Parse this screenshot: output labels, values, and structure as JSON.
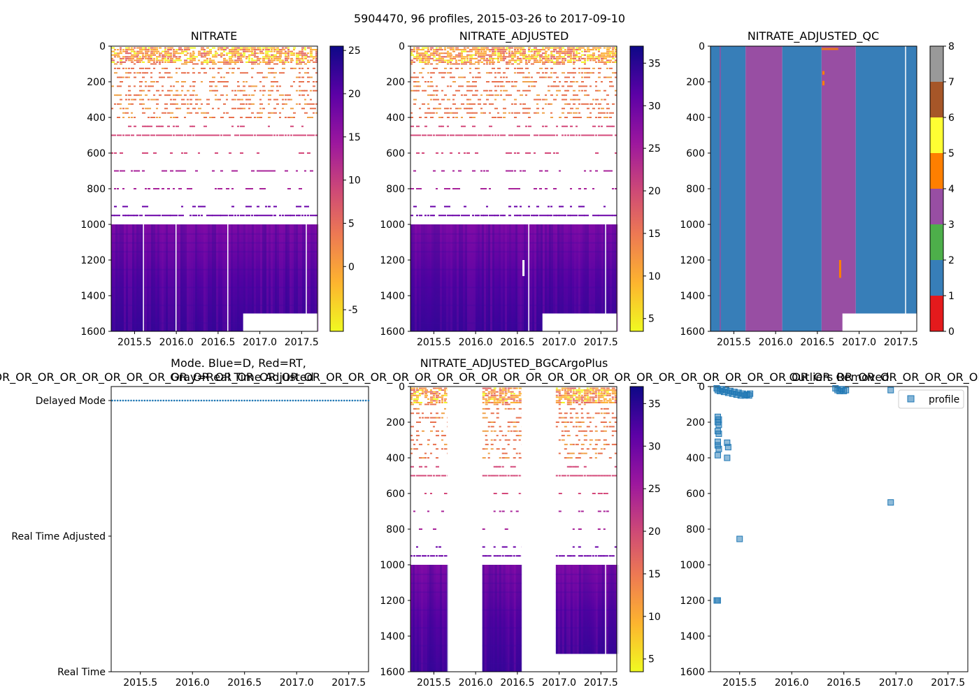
{
  "figure": {
    "suptitle": "5904470, 96 profiles, 2015-03-26 to 2017-09-10"
  },
  "chart_data": [
    {
      "id": "nitrate",
      "type": "heatmap",
      "title": "NITRATE",
      "xlabel": "",
      "ylabel": "",
      "xlim": [
        2015.22,
        2017.69
      ],
      "ylim": [
        1600,
        0
      ],
      "xticks": [
        "2015.5",
        "2016.0",
        "2016.5",
        "2017.0",
        "2017.5"
      ],
      "xtick_values": [
        2015.5,
        2016.0,
        2016.5,
        2017.0,
        2017.5
      ],
      "yticks": [
        "0",
        "200",
        "400",
        "600",
        "800",
        "1000",
        "1200",
        "1400",
        "1600"
      ],
      "colorbar": {
        "cmap": "plasma_r",
        "range": [
          -7.5,
          25.5
        ],
        "ticks": [
          "-5",
          "0",
          "5",
          "10",
          "15",
          "20",
          "25"
        ],
        "tick_values": [
          -5,
          0,
          5,
          10,
          15,
          20,
          25
        ]
      },
      "description_values": {
        "surface_range": [
          -5,
          3
        ],
        "deep_range_1000_1600": [
          18,
          25
        ]
      }
    },
    {
      "id": "nitrate_adjusted",
      "type": "heatmap",
      "title": "NITRATE_ADJUSTED",
      "xlim": [
        2015.22,
        2017.69
      ],
      "ylim": [
        1600,
        0
      ],
      "xticks": [
        "2015.5",
        "2016.0",
        "2016.5",
        "2017.0",
        "2017.5"
      ],
      "xtick_values": [
        2015.5,
        2016.0,
        2016.5,
        2017.0,
        2017.5
      ],
      "yticks": [
        "0",
        "200",
        "400",
        "600",
        "800",
        "1000",
        "1200",
        "1400",
        "1600"
      ],
      "colorbar": {
        "cmap": "plasma_r",
        "range": [
          3.5,
          37
        ],
        "ticks": [
          "5",
          "10",
          "15",
          "20",
          "25",
          "30",
          "35"
        ],
        "tick_values": [
          5,
          10,
          15,
          20,
          25,
          30,
          35
        ]
      }
    },
    {
      "id": "nitrate_adjusted_qc",
      "type": "heatmap",
      "title": "NITRATE_ADJUSTED_QC",
      "xlim": [
        2015.22,
        2017.69
      ],
      "ylim": [
        1600,
        0
      ],
      "xticks": [
        "2015.5",
        "2016.0",
        "2016.5",
        "2017.0",
        "2017.5"
      ],
      "xtick_values": [
        2015.5,
        2016.0,
        2016.5,
        2017.0,
        2017.5
      ],
      "yticks": [
        "0",
        "200",
        "400",
        "600",
        "800",
        "1000",
        "1200",
        "1400",
        "1600"
      ],
      "colorbar": {
        "type": "discrete",
        "range": [
          0,
          8
        ],
        "ticks": [
          "0",
          "1",
          "2",
          "3",
          "4",
          "5",
          "6",
          "7",
          "8"
        ],
        "tick_values": [
          0,
          1,
          2,
          3,
          4,
          5,
          6,
          7,
          8
        ],
        "colors": [
          "#e41a1c",
          "#377eb8",
          "#4daf4a",
          "#984ea3",
          "#ff7f00",
          "#ffff33",
          "#a65628",
          "#f781bf",
          "#999999"
        ]
      },
      "bands": [
        {
          "x0": 2015.22,
          "x1": 2015.64,
          "flag": 1
        },
        {
          "x0": 2015.64,
          "x1": 2016.08,
          "flag": 3
        },
        {
          "x0": 2016.08,
          "x1": 2016.55,
          "flag": 1
        },
        {
          "x0": 2016.55,
          "x1": 2016.96,
          "flag": 3
        },
        {
          "x0": 2016.96,
          "x1": 2017.69,
          "flag": 1
        }
      ],
      "blank_region": {
        "x0": 2016.8,
        "x1": 2017.69,
        "y0": 1500,
        "y1": 1600
      }
    },
    {
      "id": "mode",
      "type": "scatter",
      "title": "Mode. Blue=D, Red=RT,\nGray=Real Time Adjusted",
      "title_lines": [
        "Mode. Blue=D, Red=RT,",
        "Gray=Real Time Adjusted"
      ],
      "xlim": [
        2015.22,
        2017.69
      ],
      "xticks": [
        "2015.5",
        "2016.0",
        "2016.5",
        "2017.0",
        "2017.5"
      ],
      "xtick_values": [
        2015.5,
        2016.0,
        2016.5,
        2017.0,
        2017.5
      ],
      "ycategories": [
        "Delayed Mode",
        "Real Time Adjusted",
        "Real Time"
      ],
      "series": [
        {
          "name": "Delayed Mode",
          "color": "#1f77b4",
          "category": "Delayed Mode",
          "x_start": 2015.23,
          "x_end": 2017.69,
          "count": 96
        }
      ]
    },
    {
      "id": "nitrate_adjusted_bgcargoplus",
      "type": "heatmap",
      "title": "NITRATE_ADJUSTED_BGCArgoPlus",
      "xlim": [
        2015.22,
        2017.69
      ],
      "ylim": [
        1600,
        0
      ],
      "xticks": [
        "2015.5",
        "2016.0",
        "2016.5",
        "2017.0",
        "2017.5"
      ],
      "xtick_values": [
        2015.5,
        2016.0,
        2016.5,
        2017.0,
        2017.5
      ],
      "yticks": [
        "0",
        "200",
        "400",
        "600",
        "800",
        "1000",
        "1200",
        "1400",
        "1600"
      ],
      "colorbar": {
        "cmap": "plasma_r",
        "range": [
          3.5,
          37
        ],
        "ticks": [
          "5",
          "10",
          "15",
          "20",
          "25",
          "30",
          "35"
        ],
        "tick_values": [
          5,
          10,
          15,
          20,
          25,
          30,
          35
        ]
      },
      "data_segments": [
        {
          "x0": 2015.22,
          "x1": 2015.66
        },
        {
          "x0": 2016.08,
          "x1": 2016.55
        },
        {
          "x0": 2016.96,
          "x1": 2017.69
        }
      ]
    },
    {
      "id": "outliers",
      "type": "scatter",
      "title": "Outliers Removed",
      "banner_text": "_OR_OR_OR_OR_OR_OR_OR_OR_OR_OR_OR_OR_OR_OR_OR_OR_OR_OR_OR_OR_OR_OR_OR_OR_OR_OR_OR_OR_OR_OR_OR_OR_OR_OR_OR_OR_OR_OR_OR_OR_OR_OR_OR_OR_OR_OR_OR_OR_OR_OR_OR_OR_OR_OR_OR_OR_OR_OR_OR_OR_OR_",
      "xlim": [
        2015.22,
        2017.69
      ],
      "ylim": [
        1600,
        0
      ],
      "xticks": [
        "2015.5",
        "2016.0",
        "2016.5",
        "2017.0",
        "2017.5"
      ],
      "xtick_values": [
        2015.5,
        2016.0,
        2016.5,
        2017.0,
        2017.5
      ],
      "yticks": [
        "0",
        "200",
        "400",
        "600",
        "800",
        "1000",
        "1200",
        "1400",
        "1600"
      ],
      "legend": {
        "label": "profile",
        "location": "upper right"
      },
      "marker_color": "#1f77b4",
      "points": [
        [
          2015.28,
          10
        ],
        [
          2015.29,
          20
        ],
        [
          2015.31,
          25
        ],
        [
          2015.33,
          15
        ],
        [
          2015.35,
          30
        ],
        [
          2015.37,
          20
        ],
        [
          2015.39,
          35
        ],
        [
          2015.41,
          25
        ],
        [
          2015.43,
          40
        ],
        [
          2015.45,
          30
        ],
        [
          2015.47,
          45
        ],
        [
          2015.49,
          35
        ],
        [
          2015.51,
          50
        ],
        [
          2015.53,
          40
        ],
        [
          2015.55,
          50
        ],
        [
          2015.57,
          45
        ],
        [
          2015.59,
          50
        ],
        [
          2015.6,
          40
        ],
        [
          2015.29,
          170
        ],
        [
          2015.3,
          185
        ],
        [
          2015.29,
          200
        ],
        [
          2015.3,
          215
        ],
        [
          2015.29,
          250
        ],
        [
          2015.3,
          265
        ],
        [
          2015.29,
          310
        ],
        [
          2015.29,
          330
        ],
        [
          2015.3,
          350
        ],
        [
          2015.29,
          385
        ],
        [
          2015.38,
          315
        ],
        [
          2015.39,
          340
        ],
        [
          2015.38,
          400
        ],
        [
          2015.5,
          855
        ],
        [
          2015.28,
          1200
        ],
        [
          2015.29,
          1200
        ],
        [
          2016.42,
          10
        ],
        [
          2016.44,
          20
        ],
        [
          2016.46,
          25
        ],
        [
          2016.48,
          15
        ],
        [
          2016.5,
          25
        ],
        [
          2016.52,
          20
        ],
        [
          2016.95,
          20
        ],
        [
          2016.95,
          650
        ]
      ]
    }
  ]
}
